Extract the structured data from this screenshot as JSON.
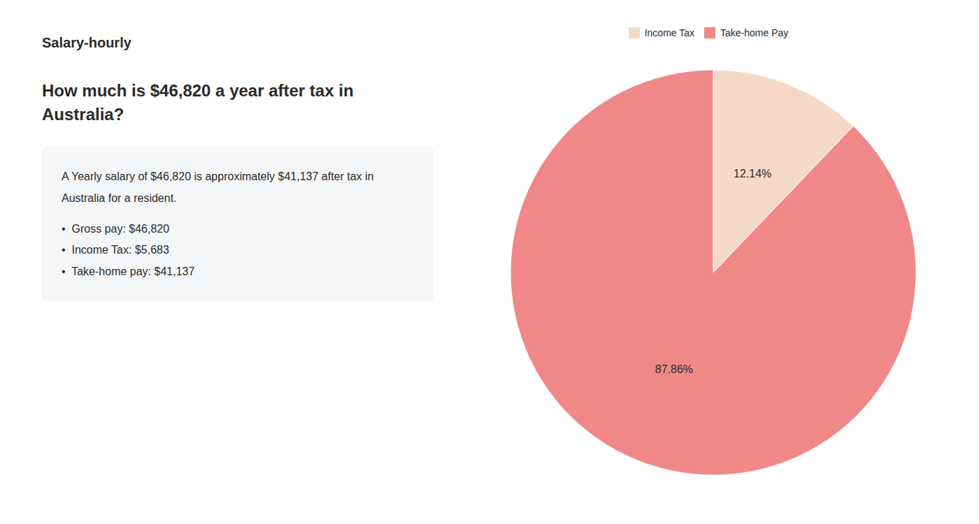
{
  "chart_data": {
    "type": "pie",
    "title": "How much is $46,820 a year after tax in\nAustralia?",
    "categories": [
      "Income Tax",
      "Take-home Pay"
    ],
    "values": [
      12.14,
      87.86
    ],
    "value_labels": [
      "12.14%",
      "87.86%"
    ],
    "colors": [
      "#f5d9c8",
      "#f08888"
    ],
    "data_labels": true,
    "legend": "top",
    "annotations": [
      "Salary-hourly",
      "A Yearly salary of $46,820 is approximately $41,137 after tax in",
      "Australia for a resident.",
      "•  Gross pay: $46,820",
      "•  Income Tax: $5,683",
      "•  Take-home pay: $41,137"
    ]
  }
}
